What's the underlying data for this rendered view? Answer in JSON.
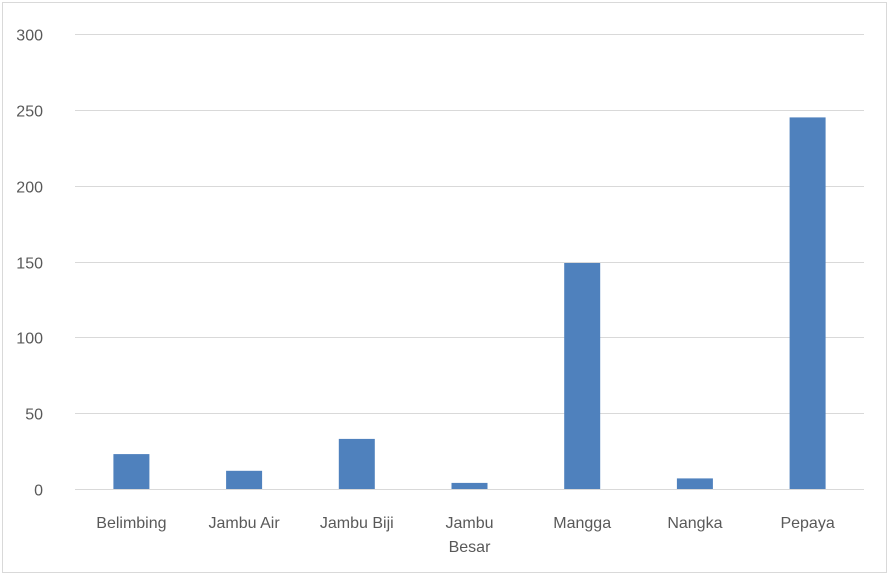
{
  "chart_data": {
    "type": "bar",
    "title": "",
    "xlabel": "",
    "ylabel": "",
    "ylim": [
      0,
      300
    ],
    "yticks": [
      0,
      50,
      100,
      150,
      200,
      250,
      300
    ],
    "grid": true,
    "legend": "none",
    "categories": [
      "Belimbing",
      "Jambu Air",
      "Jambu Biji",
      "Jambu Besar",
      "Mangga",
      "Nangka",
      "Pepaya"
    ],
    "category_lines": [
      [
        "Belimbing"
      ],
      [
        "Jambu Air"
      ],
      [
        "Jambu Biji"
      ],
      [
        "Jambu",
        "Besar"
      ],
      [
        "Mangga"
      ],
      [
        "Nangka"
      ],
      [
        "Pepaya"
      ]
    ],
    "values": [
      23,
      12,
      33,
      4,
      149,
      7,
      245
    ],
    "colors": {
      "bar": "#4f81bd",
      "grid": "#d9d9d9",
      "text": "#595959"
    }
  }
}
